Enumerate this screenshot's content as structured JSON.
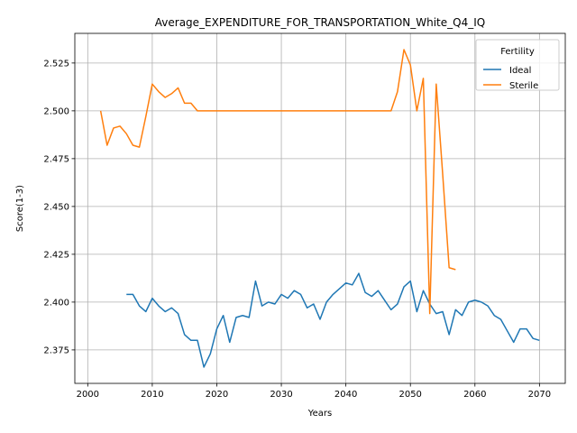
{
  "chart_data": {
    "type": "line",
    "title": "Average_EXPENDITURE_FOR_TRANSPORTATION_White_Q4_IQ",
    "xlabel": "Years",
    "ylabel": "Score(1-3)",
    "xlim": [
      1998,
      2074
    ],
    "ylim": [
      2.3575,
      2.5405
    ],
    "xticks": [
      2000,
      2010,
      2020,
      2030,
      2040,
      2050,
      2060,
      2070
    ],
    "yticks": [
      2.375,
      2.4,
      2.425,
      2.45,
      2.475,
      2.5,
      2.525
    ],
    "xtick_labels": [
      "2000",
      "2010",
      "2020",
      "2030",
      "2040",
      "2050",
      "2060",
      "2070"
    ],
    "ytick_labels": [
      "2.375",
      "2.400",
      "2.425",
      "2.450",
      "2.475",
      "2.500",
      "2.525"
    ],
    "grid": true,
    "legend": {
      "title": "Fertility",
      "placement": "top-right"
    },
    "series": [
      {
        "name": "Ideal",
        "color": "#1f77b4",
        "x": [
          2006,
          2007,
          2008,
          2009,
          2010,
          2011,
          2012,
          2013,
          2014,
          2015,
          2016,
          2017,
          2018,
          2019,
          2020,
          2021,
          2022,
          2023,
          2024,
          2025,
          2026,
          2027,
          2028,
          2029,
          2030,
          2031,
          2032,
          2033,
          2034,
          2035,
          2036,
          2037,
          2038,
          2039,
          2040,
          2041,
          2042,
          2043,
          2044,
          2045,
          2046,
          2047,
          2048,
          2049,
          2050,
          2051,
          2052,
          2053,
          2054,
          2055,
          2056,
          2057,
          2058,
          2059,
          2060,
          2061,
          2062,
          2063,
          2064,
          2065,
          2066,
          2067,
          2068,
          2069,
          2070
        ],
        "y": [
          2.404,
          2.404,
          2.398,
          2.395,
          2.402,
          2.398,
          2.395,
          2.397,
          2.394,
          2.383,
          2.38,
          2.38,
          2.366,
          2.373,
          2.386,
          2.393,
          2.379,
          2.392,
          2.393,
          2.392,
          2.411,
          2.398,
          2.4,
          2.399,
          2.404,
          2.402,
          2.406,
          2.404,
          2.397,
          2.399,
          2.391,
          2.4,
          2.404,
          2.407,
          2.41,
          2.409,
          2.415,
          2.405,
          2.403,
          2.406,
          2.401,
          2.396,
          2.399,
          2.408,
          2.411,
          2.395,
          2.406,
          2.399,
          2.394,
          2.395,
          2.383,
          2.396,
          2.393,
          2.4,
          2.401,
          2.4,
          2.398,
          2.393,
          2.391,
          2.385,
          2.379,
          2.386,
          2.386,
          2.381,
          2.38
        ]
      },
      {
        "name": "Sterile",
        "color": "#ff7f0e",
        "x": [
          2002,
          2003,
          2004,
          2005,
          2006,
          2007,
          2008,
          2009,
          2010,
          2011,
          2012,
          2013,
          2014,
          2015,
          2016,
          2017,
          2018,
          2019,
          2020,
          2021,
          2022,
          2023,
          2024,
          2025,
          2026,
          2027,
          2028,
          2029,
          2030,
          2031,
          2032,
          2033,
          2034,
          2035,
          2036,
          2037,
          2038,
          2039,
          2040,
          2041,
          2042,
          2043,
          2044,
          2045,
          2046,
          2047,
          2048,
          2049,
          2050,
          2051,
          2052,
          2053,
          2054,
          2055,
          2056,
          2057
        ],
        "y": [
          2.5,
          2.482,
          2.491,
          2.492,
          2.488,
          2.482,
          2.481,
          2.497,
          2.514,
          2.51,
          2.507,
          2.509,
          2.512,
          2.504,
          2.504,
          2.5,
          2.5,
          2.5,
          2.5,
          2.5,
          2.5,
          2.5,
          2.5,
          2.5,
          2.5,
          2.5,
          2.5,
          2.5,
          2.5,
          2.5,
          2.5,
          2.5,
          2.5,
          2.5,
          2.5,
          2.5,
          2.5,
          2.5,
          2.5,
          2.5,
          2.5,
          2.5,
          2.5,
          2.5,
          2.5,
          2.5,
          2.51,
          2.532,
          2.524,
          2.5,
          2.517,
          2.394,
          2.514,
          2.467,
          2.418,
          2.417
        ]
      }
    ]
  }
}
